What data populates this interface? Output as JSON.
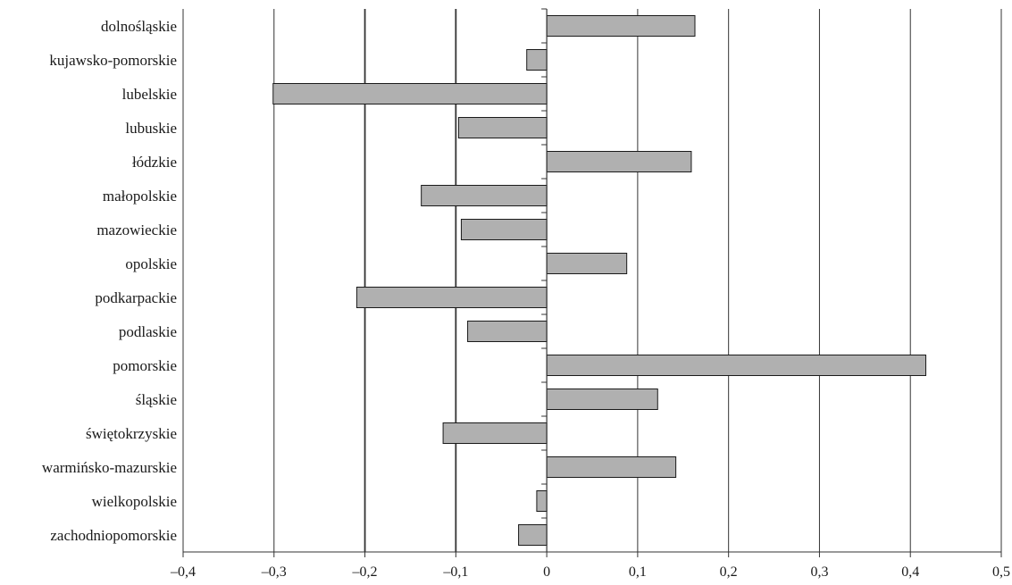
{
  "chart_data": {
    "type": "bar",
    "orientation": "horizontal",
    "categories": [
      "dolnośląskie",
      "kujawsko-pomorskie",
      "lubelskie",
      "lubuskie",
      "łódzkie",
      "małopolskie",
      "mazowieckie",
      "opolskie",
      "podkarpackie",
      "podlaskie",
      "pomorskie",
      "śląskie",
      "świętokrzyskie",
      "warmińsko-mazurskie",
      "wielkopolskie",
      "zachodniopomorskie"
    ],
    "values": [
      0.163,
      -0.022,
      -0.301,
      -0.097,
      0.159,
      -0.138,
      -0.094,
      0.088,
      -0.209,
      -0.087,
      0.417,
      0.122,
      -0.114,
      0.142,
      -0.011,
      -0.031
    ],
    "xlim": [
      -0.4,
      0.5
    ],
    "xticks": [
      -0.4,
      -0.3,
      -0.2,
      -0.1,
      0,
      0.1,
      0.2,
      0.3,
      0.4,
      0.5
    ],
    "xtick_labels": [
      "–0,4",
      "–0,3",
      "–0,2",
      "–0,1",
      "0",
      "0,1",
      "0,2",
      "0,3",
      "0,4",
      "0,5"
    ],
    "title": "",
    "xlabel": "",
    "ylabel": "",
    "grid": "vertical",
    "legend": "none",
    "bar_color": "#b0b0b0",
    "bar_edge_color": "#1a1a1a",
    "grid_color": "#333333"
  }
}
